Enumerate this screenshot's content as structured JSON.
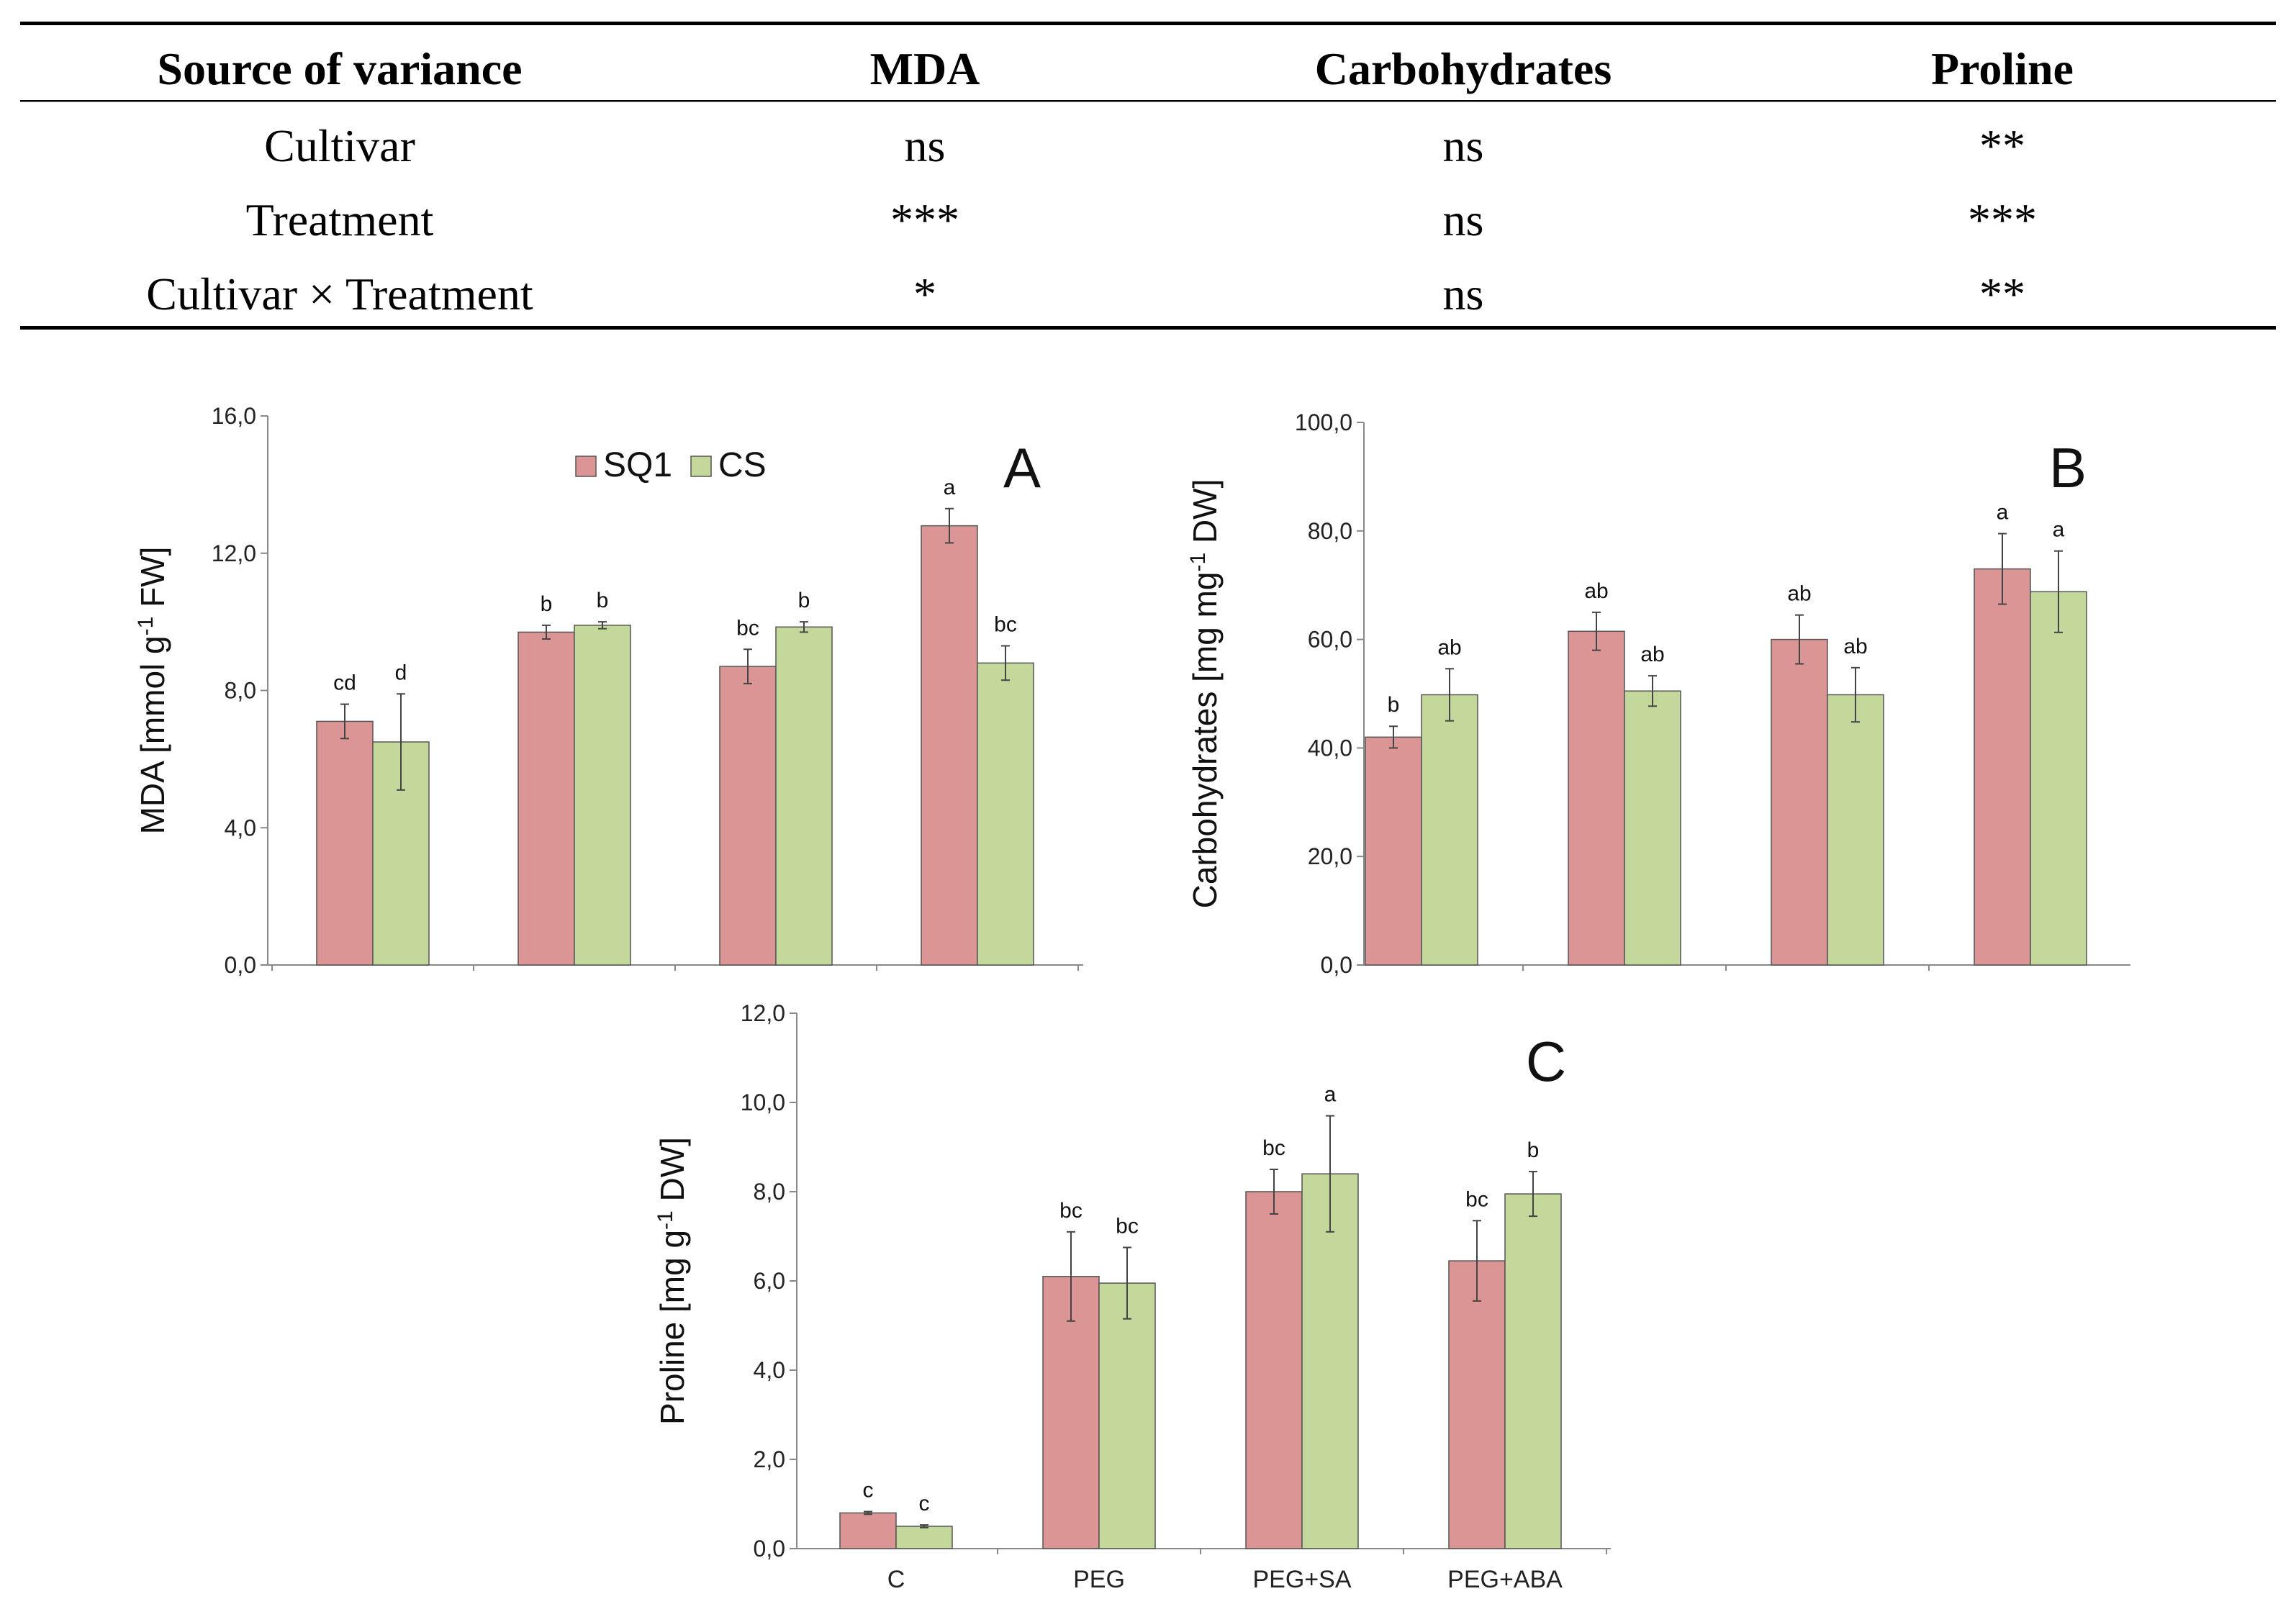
{
  "anova_table": {
    "headers": [
      "Source of variance",
      "MDA",
      "Carbohydrates",
      "Proline"
    ],
    "rows": [
      [
        "Cultivar",
        "ns",
        "ns",
        "**"
      ],
      [
        "Treatment",
        "***",
        "ns",
        "***"
      ],
      [
        "Cultivar × Treatment",
        "*",
        "ns",
        "**"
      ]
    ]
  },
  "chart_data": [
    {
      "type": "bar",
      "panel": "A",
      "title": "",
      "xlabel": "",
      "ylabel": "MDA [mmol g-1 FW]",
      "ylabel_parts": {
        "pre": "MDA [mmol g",
        "sup": "-1",
        "post": " FW]"
      },
      "ylim": [
        0,
        16
      ],
      "yticks": [
        0,
        4,
        8,
        12,
        16
      ],
      "ytick_labels": [
        "0,0",
        "4,0",
        "8,0",
        "12,0",
        "16,0"
      ],
      "categories": [
        "C",
        "PEG",
        "PEG+SA",
        "PEG+ABA"
      ],
      "show_category_labels": false,
      "legend": {
        "entries": [
          "SQ1",
          "CS"
        ],
        "position": "top-center"
      },
      "series": [
        {
          "name": "SQ1",
          "values": [
            7.1,
            9.7,
            8.7,
            12.8
          ],
          "errors": [
            0.5,
            0.2,
            0.5,
            0.5
          ],
          "letters": [
            "cd",
            "b",
            "bc",
            "a"
          ]
        },
        {
          "name": "CS",
          "values": [
            6.5,
            9.9,
            9.85,
            8.8
          ],
          "errors": [
            1.4,
            0.1,
            0.15,
            0.5
          ],
          "letters": [
            "d",
            "b",
            "b",
            "bc"
          ]
        }
      ]
    },
    {
      "type": "bar",
      "panel": "B",
      "title": "",
      "xlabel": "",
      "ylabel": "Carbohydrates [mg mg-1 DW]",
      "ylabel_parts": {
        "pre": "Carbohydrates [mg mg",
        "sup": "-1",
        "post": " DW]"
      },
      "ylim": [
        0,
        100
      ],
      "yticks": [
        0,
        20,
        40,
        60,
        80,
        100
      ],
      "ytick_labels": [
        "0,0",
        "20,0",
        "40,0",
        "60,0",
        "80,0",
        "100,0"
      ],
      "categories": [
        "C",
        "PEG",
        "PEG+SA",
        "PEG+ABA"
      ],
      "show_category_labels": false,
      "series": [
        {
          "name": "SQ1",
          "values": [
            42,
            61.5,
            60,
            73
          ],
          "errors": [
            2.0,
            3.5,
            4.5,
            6.5
          ],
          "letters": [
            "b",
            "ab",
            "ab",
            "a"
          ]
        },
        {
          "name": "CS",
          "values": [
            49.8,
            50.5,
            49.8,
            68.8
          ],
          "errors": [
            4.8,
            2.8,
            5.0,
            7.5
          ],
          "letters": [
            "ab",
            "ab",
            "ab",
            "a"
          ]
        }
      ]
    },
    {
      "type": "bar",
      "panel": "C",
      "title": "",
      "xlabel": "",
      "ylabel": "Proline [mg g-1 DW]",
      "ylabel_parts": {
        "pre": "Proline [mg g",
        "sup": "-1",
        "post": " DW]"
      },
      "ylim": [
        0,
        12
      ],
      "yticks": [
        0,
        2,
        4,
        6,
        8,
        10,
        12
      ],
      "ytick_labels": [
        "0,0",
        "2,0",
        "4,0",
        "6,0",
        "8,0",
        "10,0",
        "12,0"
      ],
      "categories": [
        "C",
        "PEG",
        "PEG+SA",
        "PEG+ABA"
      ],
      "show_category_labels": true,
      "series": [
        {
          "name": "SQ1",
          "values": [
            0.8,
            6.1,
            8.0,
            6.45
          ],
          "errors": [
            0.03,
            1.0,
            0.5,
            0.9
          ],
          "letters": [
            "c",
            "bc",
            "bc",
            "bc"
          ]
        },
        {
          "name": "CS",
          "values": [
            0.5,
            5.95,
            8.4,
            7.95
          ],
          "errors": [
            0.03,
            0.8,
            1.3,
            0.5
          ],
          "letters": [
            "c",
            "bc",
            "a",
            "b"
          ]
        }
      ]
    }
  ],
  "colors": {
    "SQ1": "#da9594",
    "CS": "#c4d89c",
    "stroke": "#555555",
    "axis": "#888888"
  }
}
